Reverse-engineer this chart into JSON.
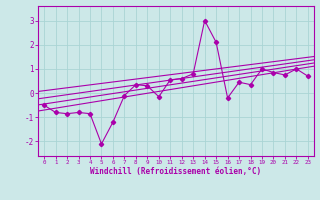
{
  "xlabel": "Windchill (Refroidissement éolien,°C)",
  "background_color": "#cce8e8",
  "grid_color": "#aad4d4",
  "line_color": "#aa00aa",
  "xlim": [
    -0.5,
    23.5
  ],
  "ylim": [
    -2.6,
    3.6
  ],
  "xticks": [
    0,
    1,
    2,
    3,
    4,
    5,
    6,
    7,
    8,
    9,
    10,
    11,
    12,
    13,
    14,
    15,
    16,
    17,
    18,
    19,
    20,
    21,
    22,
    23
  ],
  "yticks": [
    -2,
    -1,
    0,
    1,
    2,
    3
  ],
  "scatter_x": [
    0,
    1,
    2,
    3,
    4,
    5,
    6,
    7,
    8,
    9,
    10,
    11,
    12,
    13,
    14,
    15,
    16,
    17,
    18,
    19,
    20,
    21,
    22,
    23
  ],
  "scatter_y": [
    -0.5,
    -0.8,
    -0.85,
    -0.8,
    -0.85,
    -2.1,
    -1.2,
    -0.1,
    0.35,
    0.3,
    -0.15,
    0.55,
    0.6,
    0.8,
    3.0,
    2.1,
    -0.2,
    0.45,
    0.35,
    1.0,
    0.85,
    0.75,
    1.0,
    0.7
  ],
  "reg_lines": [
    {
      "slope": 0.077,
      "intercept": -0.7
    },
    {
      "slope": 0.072,
      "intercept": -0.45
    },
    {
      "slope": 0.067,
      "intercept": -0.2
    },
    {
      "slope": 0.06,
      "intercept": 0.1
    }
  ]
}
